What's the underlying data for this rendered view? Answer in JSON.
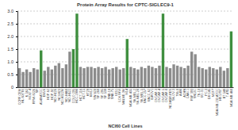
{
  "chart_data": {
    "type": "bar",
    "title": "Protein Array Results for CPTC-SIGLEC9-1",
    "x_label": "NCI60 Cell Lines",
    "categories": [
      "CCRF-CEM",
      "HL-60(TB)",
      "K-562",
      "MOLT-4",
      "RPMI-8226",
      "SR",
      "A549/ATCC",
      "EKVX",
      "HOP-62",
      "HOP-92",
      "NCI-H226",
      "NCI-H23",
      "NCI-H322M",
      "NCI-H460",
      "NCI-H522",
      "COLO 205",
      "HCC-2998",
      "HCT-116",
      "HCT-15",
      "HT29",
      "KM12",
      "SW-620",
      "SF-268",
      "SF-295",
      "SF-539",
      "SNB-19",
      "SNB-75",
      "U251",
      "LOX IMVI",
      "MALME-3M",
      "M14",
      "MDA-MB-435",
      "SK-MEL-2",
      "SK-MEL-28",
      "SK-MEL-5",
      "UACC-257",
      "UACC-62",
      "IGROV1",
      "OVCAR-3",
      "OVCAR-4",
      "OVCAR-5",
      "OVCAR-8",
      "NCI/ADR-RES",
      "SK-OV-3",
      "786-0",
      "A498",
      "ACHN",
      "CAKI-1",
      "RXF 393",
      "SN12C",
      "TK-10",
      "UO-31",
      "PC-3",
      "DU-145",
      "MCF7",
      "MDA-MB-231/ATCC",
      "HS 578T",
      "BT-549",
      "T-47D",
      "MDA-MB-468"
    ],
    "values": [
      0.75,
      0.6,
      0.7,
      0.6,
      0.75,
      0.7,
      1.45,
      0.65,
      0.8,
      0.7,
      0.85,
      0.95,
      0.75,
      0.9,
      1.4,
      1.5,
      2.9,
      0.8,
      0.75,
      0.8,
      0.8,
      0.75,
      0.8,
      0.75,
      0.8,
      0.7,
      0.75,
      0.8,
      0.7,
      0.75,
      1.9,
      0.8,
      0.75,
      0.7,
      0.8,
      0.75,
      0.85,
      0.8,
      0.75,
      0.85,
      2.9,
      0.8,
      0.75,
      0.9,
      0.85,
      0.8,
      0.75,
      0.85,
      1.4,
      1.3,
      0.8,
      0.75,
      0.7,
      0.8,
      0.75,
      0.7,
      0.8,
      0.65,
      0.75,
      2.2
    ],
    "colors": [
      "#8c8c8c",
      "#8c8c8c",
      "#8c8c8c",
      "#8c8c8c",
      "#8c8c8c",
      "#8c8c8c",
      "#3f8f3f",
      "#8c8c8c",
      "#8c8c8c",
      "#8c8c8c",
      "#8c8c8c",
      "#8c8c8c",
      "#8c8c8c",
      "#8c8c8c",
      "#8c8c8c",
      "#3f8f3f",
      "#3f8f3f",
      "#8c8c8c",
      "#8c8c8c",
      "#8c8c8c",
      "#8c8c8c",
      "#8c8c8c",
      "#8c8c8c",
      "#8c8c8c",
      "#8c8c8c",
      "#8c8c8c",
      "#8c8c8c",
      "#8c8c8c",
      "#8c8c8c",
      "#8c8c8c",
      "#3f8f3f",
      "#8c8c8c",
      "#8c8c8c",
      "#8c8c8c",
      "#8c8c8c",
      "#8c8c8c",
      "#8c8c8c",
      "#8c8c8c",
      "#8c8c8c",
      "#8c8c8c",
      "#3f8f3f",
      "#8c8c8c",
      "#8c8c8c",
      "#8c8c8c",
      "#8c8c8c",
      "#8c8c8c",
      "#8c8c8c",
      "#8c8c8c",
      "#8c8c8c",
      "#8c8c8c",
      "#8c8c8c",
      "#8c8c8c",
      "#8c8c8c",
      "#8c8c8c",
      "#8c8c8c",
      "#8c8c8c",
      "#8c8c8c",
      "#8c8c8c",
      "#8c8c8c",
      "#3f8f3f"
    ],
    "ylim": [
      0,
      3.0
    ],
    "yticks": [
      0,
      {
        "value": 0.5,
        "label": "0.5"
      },
      {
        "value": 1,
        "label": "1.0"
      },
      {
        "value": 1.5,
        "label": "1.5"
      },
      {
        "value": 2,
        "label": "2.0"
      },
      {
        "value": 2.5,
        "label": "2.5"
      },
      {
        "value": 3,
        "label": "3.0"
      }
    ],
    "grid": true
  }
}
